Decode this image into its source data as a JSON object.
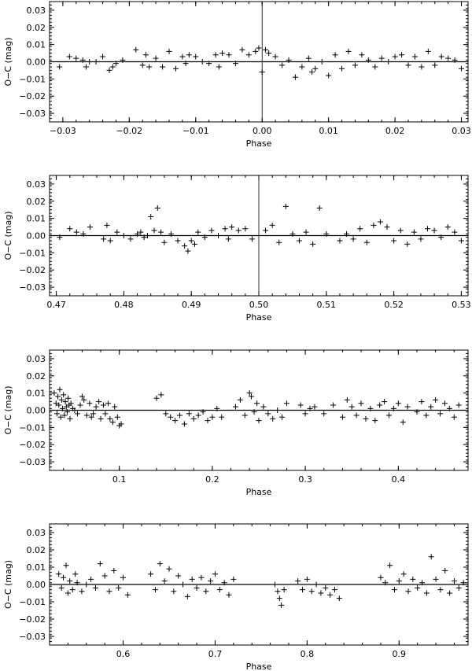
{
  "chart_data": [
    {
      "type": "scatter",
      "marker": "plus",
      "xlabel": "Phase",
      "ylabel": "O−C (mag)",
      "xlim": [
        -0.032,
        0.031
      ],
      "ylim": [
        -0.035,
        0.035
      ],
      "xticks": [
        -0.03,
        -0.02,
        -0.01,
        0.0,
        0.01,
        0.02,
        0.03
      ],
      "xtick_labels": [
        "−0.03",
        "−0.02",
        "−0.01",
        "0.00",
        "0.01",
        "0.02",
        "0.03"
      ],
      "yticks": [
        0.03,
        0.02,
        0.01,
        0.0,
        -0.01,
        -0.02,
        -0.03
      ],
      "ytick_labels": [
        "0.03",
        "0.02",
        "0.01",
        "0.00",
        "−0.01",
        "−0.02",
        "−0.03"
      ],
      "hline_y": 0.0,
      "vline_x": 0.0,
      "x": [
        -0.0305,
        -0.029,
        -0.028,
        -0.027,
        -0.0265,
        -0.026,
        -0.025,
        -0.024,
        -0.023,
        -0.0225,
        -0.022,
        -0.021,
        -0.019,
        -0.018,
        -0.0175,
        -0.017,
        -0.016,
        -0.015,
        -0.014,
        -0.013,
        -0.012,
        -0.0115,
        -0.011,
        -0.01,
        -0.009,
        -0.008,
        -0.007,
        -0.0065,
        -0.006,
        -0.005,
        -0.004,
        -0.003,
        -0.002,
        -0.001,
        -0.0005,
        0.0,
        0.0005,
        0.001,
        0.002,
        0.003,
        0.004,
        0.005,
        0.006,
        0.007,
        0.0075,
        0.008,
        0.009,
        0.01,
        0.011,
        0.012,
        0.013,
        0.014,
        0.015,
        0.016,
        0.017,
        0.018,
        0.019,
        0.02,
        0.021,
        0.022,
        0.023,
        0.024,
        0.025,
        0.026,
        0.027,
        0.028,
        0.029,
        0.03
      ],
      "y": [
        -0.003,
        0.003,
        0.002,
        0.001,
        -0.003,
        0.0,
        0.0,
        0.003,
        -0.005,
        -0.003,
        -0.001,
        0.001,
        0.007,
        -0.002,
        0.004,
        -0.003,
        0.002,
        -0.003,
        0.006,
        -0.004,
        0.003,
        -0.001,
        0.004,
        0.003,
        0.0,
        -0.001,
        0.004,
        -0.003,
        0.005,
        0.004,
        -0.001,
        0.007,
        0.004,
        0.006,
        0.008,
        -0.006,
        0.007,
        0.005,
        0.003,
        -0.002,
        0.001,
        -0.009,
        -0.003,
        0.002,
        -0.006,
        -0.004,
        0.0,
        -0.008,
        0.004,
        -0.004,
        0.006,
        -0.002,
        0.004,
        0.001,
        -0.003,
        0.002,
        0.0,
        0.003,
        0.004,
        -0.002,
        0.003,
        -0.003,
        0.006,
        -0.002,
        0.003,
        0.002,
        0.001,
        -0.004
      ]
    },
    {
      "type": "scatter",
      "marker": "plus",
      "xlabel": "Phase",
      "ylabel": "O−C (mag)",
      "xlim": [
        0.469,
        0.531
      ],
      "ylim": [
        -0.035,
        0.035
      ],
      "xticks": [
        0.47,
        0.48,
        0.49,
        0.5,
        0.51,
        0.52,
        0.53
      ],
      "xtick_labels": [
        "0.47",
        "0.48",
        "0.49",
        "0.50",
        "0.51",
        "0.52",
        "0.53"
      ],
      "yticks": [
        0.03,
        0.02,
        0.01,
        0.0,
        -0.01,
        -0.02,
        -0.03
      ],
      "ytick_labels": [
        "0.03",
        "0.02",
        "0.01",
        "0.00",
        "−0.01",
        "−0.02",
        "−0.03"
      ],
      "hline_y": 0.0,
      "vline_x": 0.5,
      "x": [
        0.4705,
        0.472,
        0.473,
        0.474,
        0.475,
        0.477,
        0.4775,
        0.478,
        0.479,
        0.48,
        0.481,
        0.482,
        0.4825,
        0.483,
        0.4835,
        0.484,
        0.4845,
        0.485,
        0.4855,
        0.486,
        0.487,
        0.488,
        0.489,
        0.4895,
        0.49,
        0.4905,
        0.491,
        0.492,
        0.493,
        0.494,
        0.495,
        0.4955,
        0.496,
        0.497,
        0.498,
        0.499,
        0.501,
        0.502,
        0.503,
        0.504,
        0.505,
        0.506,
        0.507,
        0.508,
        0.509,
        0.51,
        0.512,
        0.513,
        0.514,
        0.515,
        0.516,
        0.517,
        0.518,
        0.519,
        0.52,
        0.521,
        0.522,
        0.523,
        0.524,
        0.525,
        0.526,
        0.527,
        0.528,
        0.529,
        0.53
      ],
      "y": [
        -0.001,
        0.004,
        0.002,
        0.001,
        0.005,
        -0.002,
        0.006,
        -0.003,
        0.002,
        0.0,
        -0.002,
        0.001,
        0.002,
        -0.001,
        0.0,
        0.011,
        0.003,
        0.016,
        0.002,
        -0.004,
        0.001,
        -0.003,
        -0.006,
        -0.009,
        -0.003,
        -0.005,
        0.002,
        -0.001,
        0.003,
        0.0,
        0.004,
        -0.002,
        0.005,
        0.003,
        0.004,
        -0.002,
        0.003,
        0.006,
        -0.004,
        0.017,
        0.001,
        -0.003,
        0.002,
        -0.005,
        0.016,
        0.001,
        -0.003,
        0.001,
        -0.002,
        0.004,
        -0.004,
        0.006,
        0.008,
        0.005,
        -0.003,
        0.003,
        -0.005,
        0.002,
        -0.002,
        0.004,
        0.003,
        -0.001,
        0.005,
        0.002,
        -0.003
      ]
    },
    {
      "type": "scatter",
      "marker": "plus",
      "xlabel": "Phase",
      "ylabel": "O−C (mag)",
      "xlim": [
        0.025,
        0.475
      ],
      "ylim": [
        -0.035,
        0.035
      ],
      "xticks": [
        0.1,
        0.2,
        0.3,
        0.4
      ],
      "xtick_labels": [
        "0.1",
        "0.2",
        "0.3",
        "0.4"
      ],
      "yticks": [
        0.03,
        0.02,
        0.01,
        0.0,
        -0.01,
        -0.02,
        -0.03
      ],
      "ytick_labels": [
        "0.03",
        "0.02",
        "0.01",
        "0.00",
        "−0.01",
        "−0.02",
        "−0.03"
      ],
      "hline_y": 0.0,
      "x": [
        0.03,
        0.032,
        0.033,
        0.034,
        0.035,
        0.036,
        0.037,
        0.038,
        0.039,
        0.04,
        0.041,
        0.042,
        0.043,
        0.044,
        0.045,
        0.046,
        0.047,
        0.048,
        0.05,
        0.052,
        0.055,
        0.058,
        0.06,
        0.062,
        0.065,
        0.068,
        0.07,
        0.072,
        0.075,
        0.078,
        0.08,
        0.083,
        0.085,
        0.088,
        0.09,
        0.093,
        0.095,
        0.098,
        0.1,
        0.102,
        0.14,
        0.145,
        0.15,
        0.155,
        0.16,
        0.165,
        0.17,
        0.175,
        0.18,
        0.185,
        0.19,
        0.195,
        0.2,
        0.205,
        0.21,
        0.225,
        0.23,
        0.235,
        0.24,
        0.242,
        0.245,
        0.248,
        0.25,
        0.255,
        0.26,
        0.265,
        0.27,
        0.275,
        0.28,
        0.295,
        0.3,
        0.305,
        0.31,
        0.32,
        0.33,
        0.34,
        0.345,
        0.35,
        0.355,
        0.36,
        0.365,
        0.37,
        0.375,
        0.38,
        0.385,
        0.39,
        0.395,
        0.4,
        0.405,
        0.41,
        0.42,
        0.425,
        0.43,
        0.435,
        0.44,
        0.445,
        0.45,
        0.455,
        0.46,
        0.465
      ],
      "y": [
        0.01,
        0.004,
        -0.002,
        0.008,
        0.003,
        0.012,
        -0.004,
        0.006,
        0.001,
        0.009,
        -0.003,
        0.005,
        0.002,
        -0.001,
        0.007,
        0.003,
        -0.005,
        0.004,
        0.001,
        0.0,
        -0.002,
        0.003,
        0.008,
        0.006,
        -0.003,
        0.004,
        -0.004,
        -0.002,
        0.002,
        0.005,
        -0.005,
        0.003,
        -0.002,
        0.004,
        -0.005,
        -0.007,
        0.002,
        -0.004,
        -0.009,
        -0.008,
        0.007,
        0.009,
        -0.002,
        -0.004,
        -0.006,
        -0.003,
        -0.008,
        -0.002,
        -0.005,
        -0.003,
        -0.001,
        -0.006,
        -0.004,
        0.001,
        -0.004,
        0.002,
        0.006,
        -0.003,
        0.01,
        0.008,
        -0.001,
        0.004,
        -0.006,
        0.002,
        -0.002,
        -0.005,
        0.0,
        -0.004,
        0.004,
        0.003,
        -0.002,
        0.001,
        0.002,
        -0.002,
        0.003,
        -0.004,
        0.006,
        0.002,
        -0.003,
        0.004,
        -0.005,
        0.001,
        -0.006,
        0.003,
        0.005,
        -0.003,
        0.001,
        0.004,
        -0.007,
        0.002,
        -0.001,
        0.005,
        -0.003,
        0.002,
        0.006,
        -0.002,
        0.004,
        0.001,
        -0.004,
        0.003
      ]
    },
    {
      "type": "scatter",
      "marker": "plus",
      "xlabel": "Phase",
      "ylabel": "O−C (mag)",
      "xlim": [
        0.52,
        0.975
      ],
      "ylim": [
        -0.035,
        0.035
      ],
      "xticks": [
        0.6,
        0.7,
        0.8,
        0.9
      ],
      "xtick_labels": [
        "0.6",
        "0.7",
        "0.8",
        "0.9"
      ],
      "yticks": [
        0.03,
        0.02,
        0.01,
        0.0,
        -0.01,
        -0.02,
        -0.03
      ],
      "ytick_labels": [
        "0.03",
        "0.02",
        "0.01",
        "0.00",
        "−0.01",
        "−0.02",
        "−0.03"
      ],
      "hline_y": 0.0,
      "x": [
        0.53,
        0.533,
        0.535,
        0.538,
        0.54,
        0.542,
        0.545,
        0.548,
        0.55,
        0.555,
        0.56,
        0.565,
        0.57,
        0.575,
        0.58,
        0.585,
        0.59,
        0.595,
        0.6,
        0.605,
        0.63,
        0.635,
        0.64,
        0.645,
        0.65,
        0.655,
        0.66,
        0.665,
        0.67,
        0.675,
        0.68,
        0.685,
        0.69,
        0.695,
        0.7,
        0.705,
        0.71,
        0.715,
        0.72,
        0.765,
        0.768,
        0.77,
        0.772,
        0.775,
        0.79,
        0.795,
        0.8,
        0.805,
        0.81,
        0.815,
        0.82,
        0.825,
        0.83,
        0.835,
        0.88,
        0.885,
        0.89,
        0.895,
        0.9,
        0.905,
        0.91,
        0.915,
        0.92,
        0.925,
        0.93,
        0.935,
        0.94,
        0.945,
        0.95,
        0.955,
        0.96,
        0.965,
        0.97
      ],
      "y": [
        0.006,
        -0.002,
        0.004,
        0.011,
        -0.005,
        0.002,
        -0.003,
        0.006,
        0.001,
        -0.004,
        0.0,
        0.003,
        -0.002,
        0.012,
        0.005,
        -0.004,
        0.008,
        -0.002,
        0.004,
        -0.006,
        0.006,
        -0.003,
        0.012,
        0.002,
        0.009,
        -0.004,
        0.005,
        0.0,
        -0.007,
        0.003,
        -0.002,
        0.004,
        -0.004,
        0.002,
        0.006,
        -0.003,
        0.001,
        -0.006,
        0.003,
        0.0,
        -0.004,
        -0.008,
        -0.012,
        -0.003,
        0.002,
        -0.003,
        0.003,
        -0.004,
        0.0,
        -0.005,
        -0.002,
        -0.006,
        -0.003,
        -0.008,
        0.004,
        0.001,
        0.011,
        -0.003,
        0.002,
        0.006,
        -0.004,
        0.003,
        -0.002,
        0.001,
        -0.005,
        0.016,
        0.003,
        -0.003,
        0.008,
        -0.005,
        0.002,
        -0.002,
        0.001
      ]
    }
  ]
}
